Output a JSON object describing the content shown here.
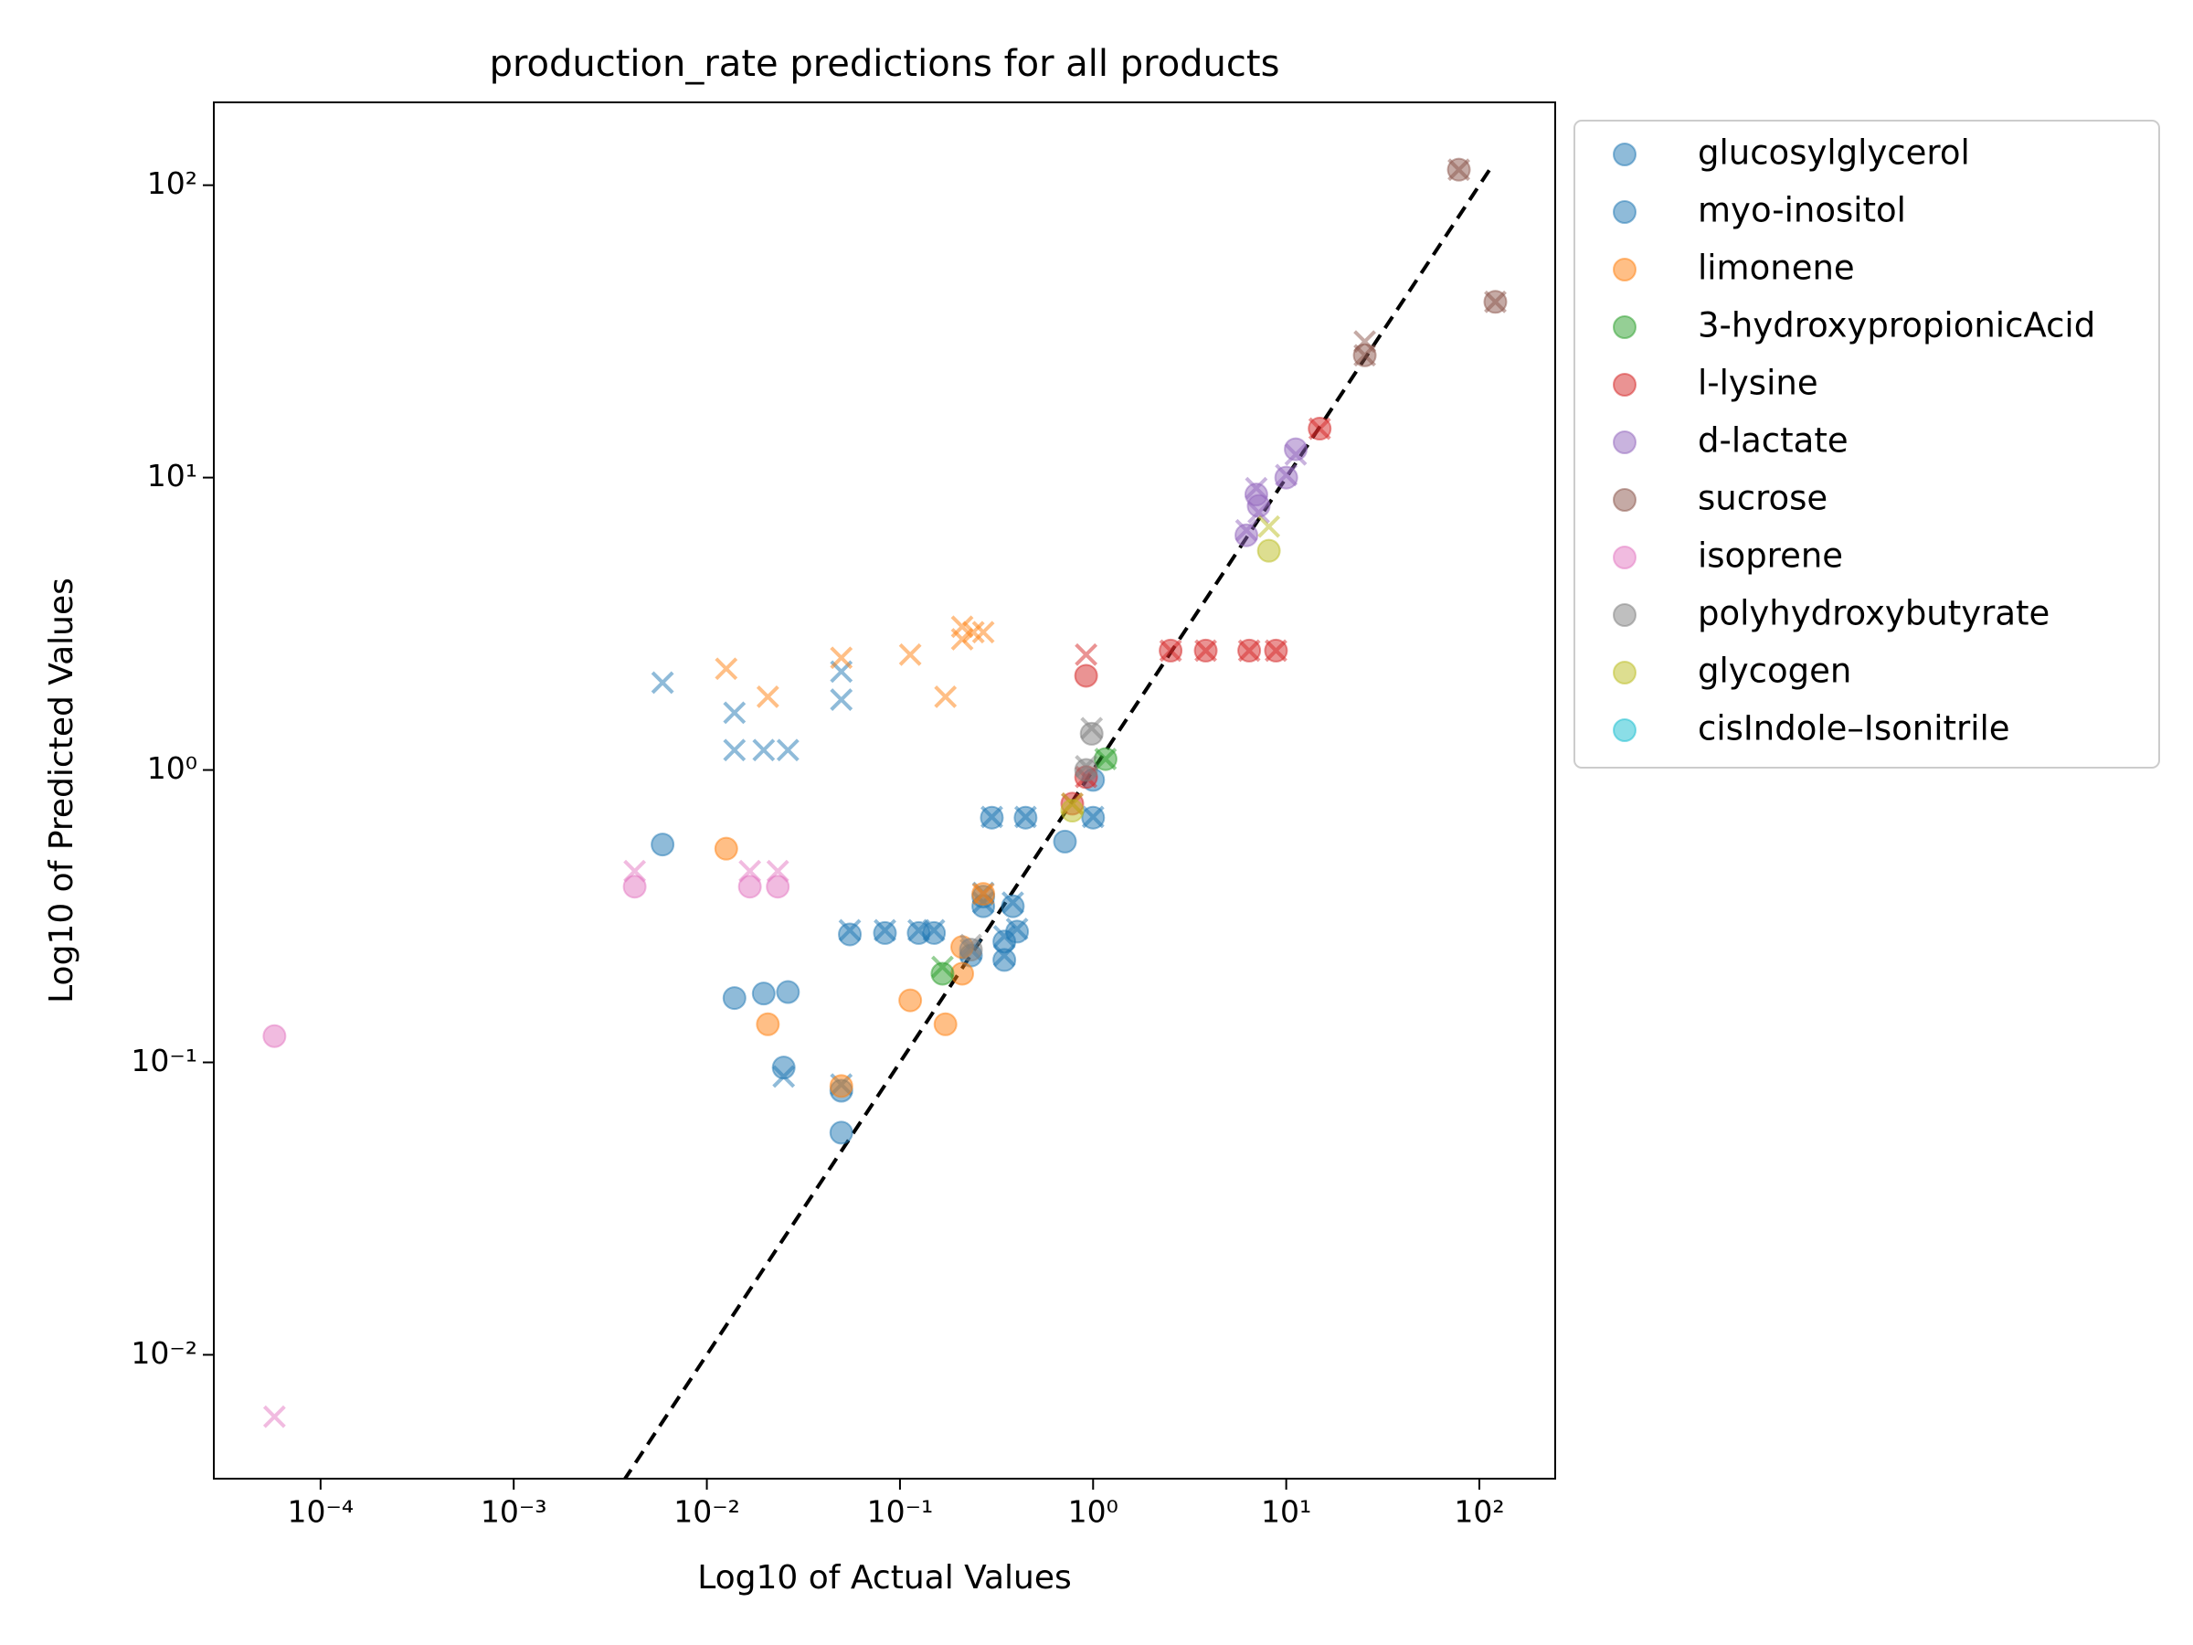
{
  "chart_data": {
    "type": "scatter",
    "title": "production_rate predictions for all products",
    "x_label": "Log10 of Actual Values",
    "y_label": "Log10 of Predicted Values",
    "xscale": "log",
    "yscale": "log",
    "xlim": [
      2.8e-05,
      247
    ],
    "ylim": [
      0.00377,
      192
    ],
    "xticks": [
      {
        "value": 0.0001,
        "label": "10⁻⁴"
      },
      {
        "value": 0.001,
        "label": "10⁻³"
      },
      {
        "value": 0.01,
        "label": "10⁻²"
      },
      {
        "value": 0.1,
        "label": "10⁻¹"
      },
      {
        "value": 1,
        "label": "10⁰"
      },
      {
        "value": 10,
        "label": "10¹"
      },
      {
        "value": 100,
        "label": "10²"
      }
    ],
    "yticks": [
      {
        "value": 0.01,
        "label": "10⁻²"
      },
      {
        "value": 0.1,
        "label": "10⁻¹"
      },
      {
        "value": 1,
        "label": "10⁰"
      },
      {
        "value": 10,
        "label": "10¹"
      },
      {
        "value": 100,
        "label": "10²"
      }
    ],
    "legend": "outside upper right",
    "reference_line": {
      "color": "#000000",
      "x": [
        0.0037,
        118
      ],
      "values": [
        0.0037,
        118
      ]
    },
    "series": [
      {
        "name": "glucosylglycerol",
        "color": "#1f77b4",
        "x": [
          0.0059,
          0.0139,
          0.0197,
          0.0263,
          0.025,
          0.0497,
          0.0497
        ],
        "values": [
          0.556,
          0.166,
          0.172,
          0.174,
          0.096,
          0.08,
          0.0575
        ],
        "cross_x": [
          0.0059,
          0.0139,
          0.0139,
          0.0197,
          0.0263,
          0.0497,
          0.0497,
          0.025,
          0.0497
        ],
        "cross_values": [
          1.99,
          1.57,
          1.17,
          1.17,
          1.17,
          2.17,
          1.74,
          0.0895,
          0.084
        ]
      },
      {
        "name": "myo-inositol",
        "color": "#1f77b4",
        "x": [
          0.055,
          0.0836,
          0.125,
          0.15,
          0.27,
          0.27,
          0.347,
          0.347,
          0.384,
          0.404,
          0.299,
          0.447,
          0.715,
          1.0,
          1.0,
          0.233
        ],
        "values": [
          0.274,
          0.277,
          0.277,
          0.277,
          0.369,
          0.342,
          0.259,
          0.224,
          0.342,
          0.28,
          0.687,
          0.687,
          0.569,
          0.687,
          0.925,
          0.232
        ],
        "cross_x": [
          0.055,
          0.0836,
          0.125,
          0.15,
          0.27,
          0.27,
          0.347,
          0.347,
          0.384,
          0.404,
          0.299,
          0.447,
          1.0,
          0.233
        ],
        "cross_values": [
          0.283,
          0.283,
          0.283,
          0.283,
          0.38,
          0.352,
          0.27,
          0.232,
          0.352,
          0.286,
          0.691,
          0.691,
          0.691,
          0.243
        ]
      },
      {
        "name": "limonene",
        "color": "#ff7f0e",
        "x": [
          0.0126,
          0.0207,
          0.0497,
          0.113,
          0.172,
          0.21,
          0.21,
          0.27
        ],
        "values": [
          0.538,
          0.135,
          0.083,
          0.163,
          0.135,
          0.201,
          0.248,
          0.377
        ],
        "cross_x": [
          0.0126,
          0.0207,
          0.0497,
          0.113,
          0.172,
          0.21,
          0.21,
          0.24,
          0.27,
          0.27
        ],
        "cross_values": [
          2.22,
          1.78,
          2.42,
          2.48,
          1.78,
          2.8,
          3.09,
          2.96,
          2.96,
          0.377
        ]
      },
      {
        "name": "3-hydroxypropionicAcid",
        "color": "#2ca02c",
        "x": [
          0.166,
          1.16
        ],
        "values": [
          0.201,
          1.09
        ],
        "cross_x": [
          0.166,
          1.16
        ],
        "cross_values": [
          0.212,
          1.09
        ]
      },
      {
        "name": "l-lysine",
        "color": "#d62728",
        "x": [
          0.92,
          0.92,
          0.78,
          2.52,
          3.83,
          6.43,
          8.85,
          14.9
        ],
        "values": [
          2.1,
          0.946,
          0.767,
          2.56,
          2.56,
          2.56,
          2.56,
          14.7
        ],
        "cross_x": [
          0.92,
          0.92,
          0.78,
          2.52,
          3.83,
          6.43,
          8.85,
          14.9
        ],
        "cross_values": [
          2.48,
          0.946,
          0.767,
          2.56,
          2.56,
          2.56,
          2.56,
          14.7
        ]
      },
      {
        "name": "d-lactate",
        "color": "#9467bd",
        "x": [
          6.22,
          7.0,
          11.2,
          10,
          7.2
        ],
        "values": [
          6.35,
          8.75,
          12.5,
          10,
          8.0
        ],
        "cross_x": [
          6.22,
          7.0,
          11.2,
          10,
          7.2
        ],
        "cross_values": [
          6.6,
          9.2,
          12.0,
          10.2,
          7.6
        ]
      },
      {
        "name": "sucrose",
        "color": "#8c564b",
        "x": [
          78.3,
          121,
          25.5
        ],
        "values": [
          113,
          39.9,
          26.2
        ],
        "cross_x": [
          78.3,
          121,
          25.5,
          25.5
        ],
        "cross_values": [
          113,
          39.9,
          26.2,
          29.2
        ]
      },
      {
        "name": "isoprene",
        "color": "#e377c2",
        "x": [
          5.77e-05,
          0.00423,
          0.0167,
          0.0233
        ],
        "values": [
          0.123,
          0.399,
          0.399,
          0.399
        ],
        "cross_x": [
          5.77e-05,
          0.00423,
          0.0167,
          0.0233
        ],
        "cross_values": [
          0.00614,
          0.451,
          0.451,
          0.451
        ]
      },
      {
        "name": "polyhydroxybutyrate",
        "color": "#7f7f7f",
        "x": [
          0.983,
          0.233,
          0.92
        ],
        "values": [
          1.33,
          0.243,
          1.0
        ],
        "cross_x": [
          0.983,
          0.233,
          0.92
        ],
        "cross_values": [
          1.39,
          0.252,
          1.03
        ]
      },
      {
        "name": "glycogen",
        "color": "#bcbd22",
        "x": [
          8.13,
          0.78
        ],
        "values": [
          5.62,
          0.726
        ],
        "cross_x": [
          8.13,
          0.78
        ],
        "cross_values": [
          6.8,
          0.767
        ]
      },
      {
        "name": "cisIndole–Isonitrile",
        "color": "#17becf",
        "x": [],
        "values": [],
        "cross_x": [],
        "cross_values": []
      }
    ]
  }
}
